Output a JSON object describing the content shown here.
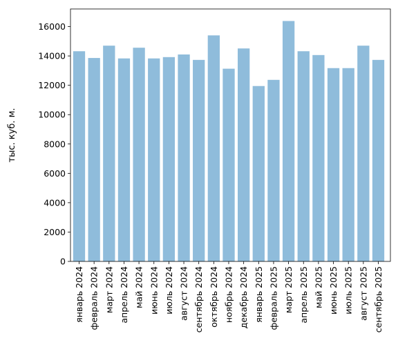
{
  "chart_data": {
    "type": "bar",
    "title": "",
    "xlabel": "",
    "ylabel": "тыс. куб. м.",
    "ylim": [
      0,
      17200
    ],
    "yticks": [
      0,
      2000,
      4000,
      6000,
      8000,
      10000,
      12000,
      14000,
      16000
    ],
    "grid": false,
    "bar_color": "#8fbcdb",
    "categories": [
      "январь 2024",
      "февраль 2024",
      "март 2024",
      "апрель 2024",
      "май 2024",
      "июнь 2024",
      "июль 2024",
      "август 2024",
      "сентябрь 2024",
      "октябрь 2024",
      "ноябрь 2024",
      "декабрь 2024",
      "январь 2025",
      "февраль 2025",
      "март 2025",
      "апрель 2025",
      "май 2025",
      "июнь 2025",
      "июль 2025",
      "август 2025",
      "сентябрь 2025"
    ],
    "values": [
      14320,
      13860,
      14700,
      13830,
      14560,
      13830,
      13920,
      14100,
      13730,
      15400,
      13130,
      14510,
      11950,
      12370,
      16380,
      14320,
      14060,
      13170,
      13170,
      14700,
      13730
    ]
  }
}
